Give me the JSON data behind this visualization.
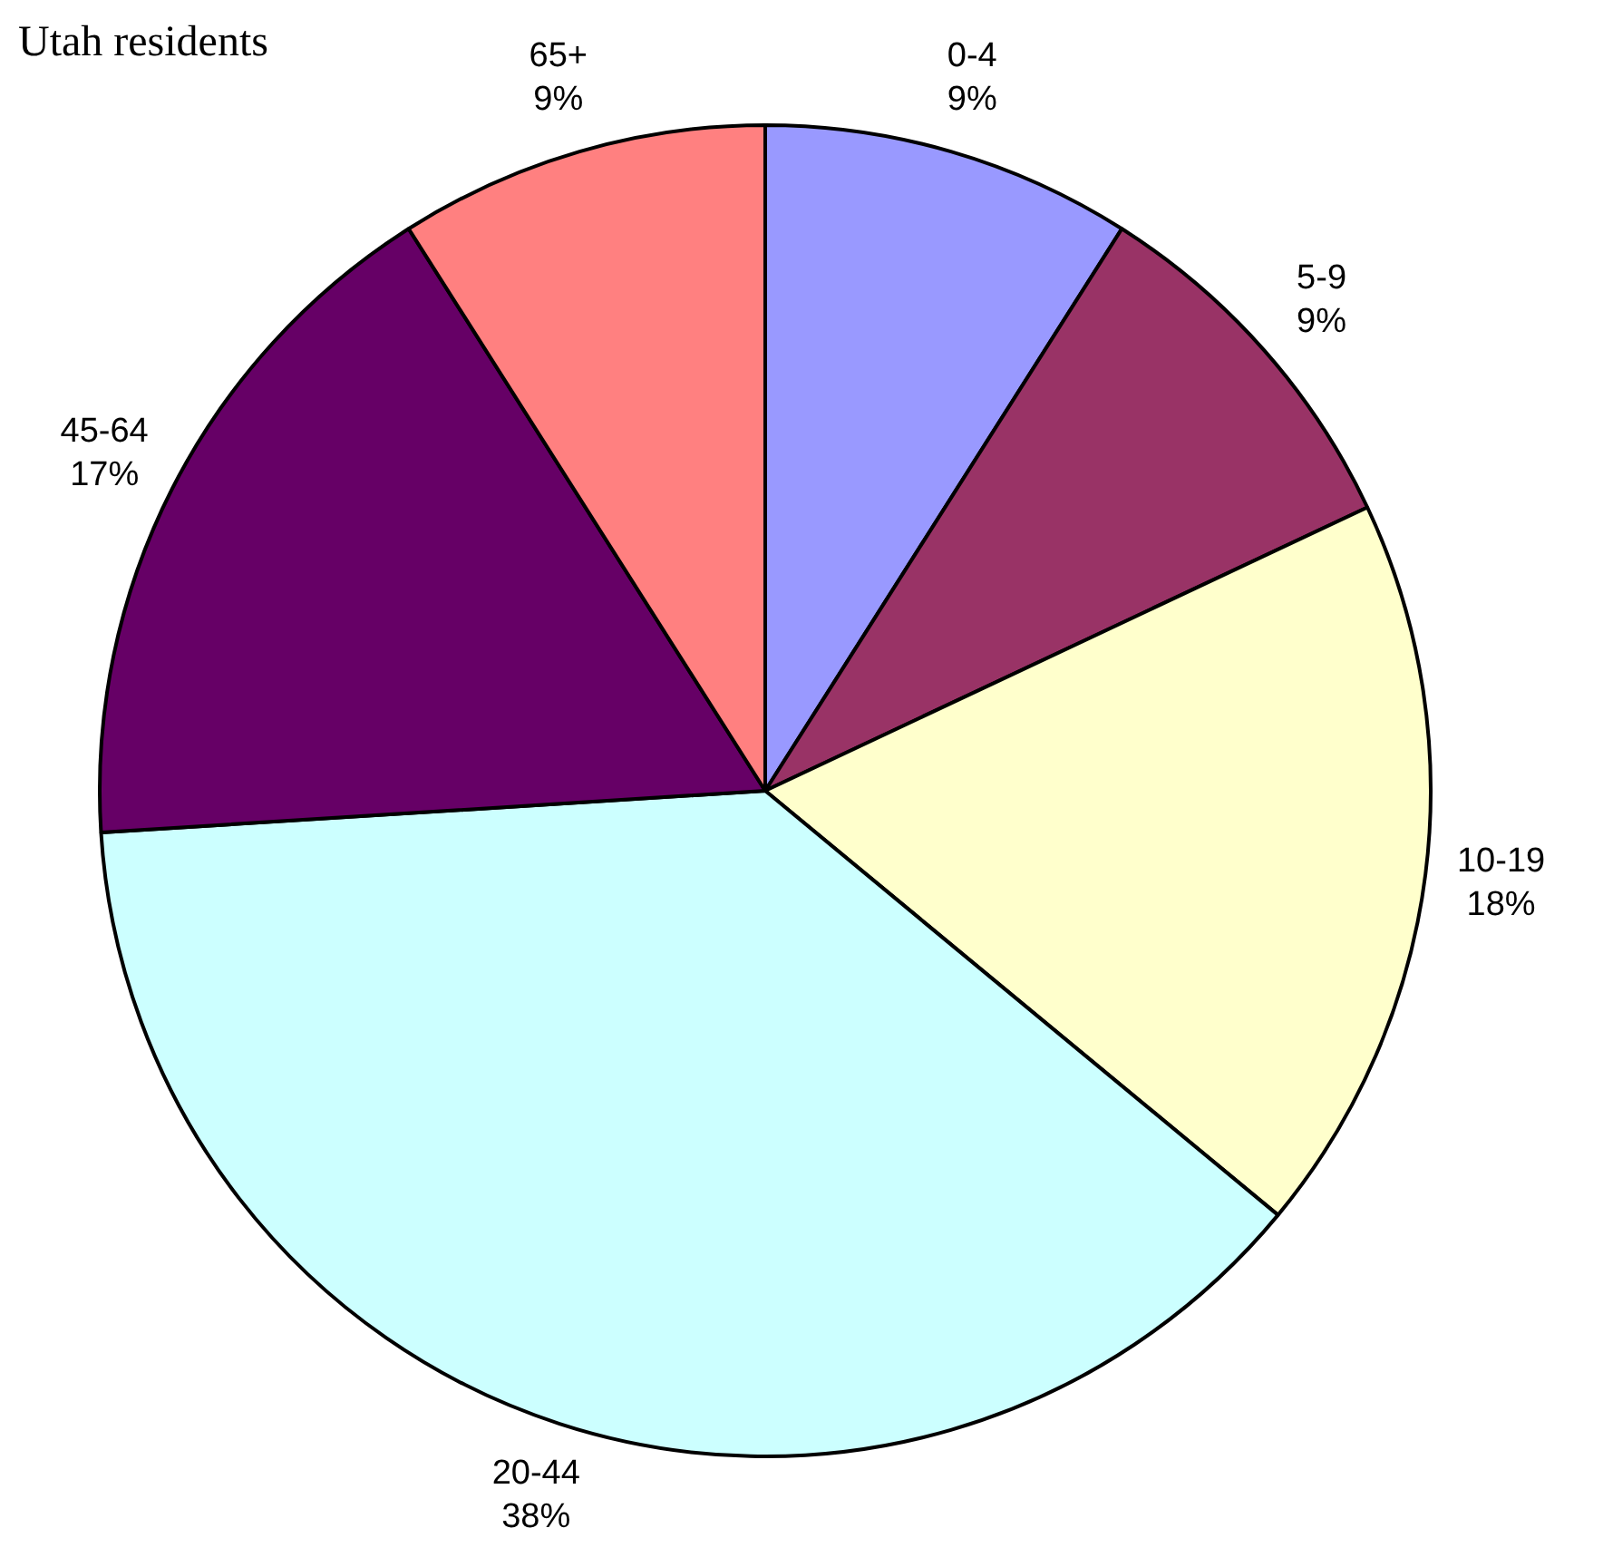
{
  "chart_data": {
    "type": "pie",
    "title": "Utah residents",
    "categories": [
      "0-4",
      "5-9",
      "10-19",
      "20-44",
      "45-64",
      "65+"
    ],
    "values": [
      9,
      9,
      18,
      38,
      17,
      9
    ],
    "colors": [
      "#9999ff",
      "#993366",
      "#ffffcc",
      "#ccffff",
      "#660066",
      "#ff8080"
    ],
    "value_labels": [
      "9%",
      "9%",
      "18%",
      "38%",
      "17%",
      "9%"
    ],
    "legend": false
  }
}
